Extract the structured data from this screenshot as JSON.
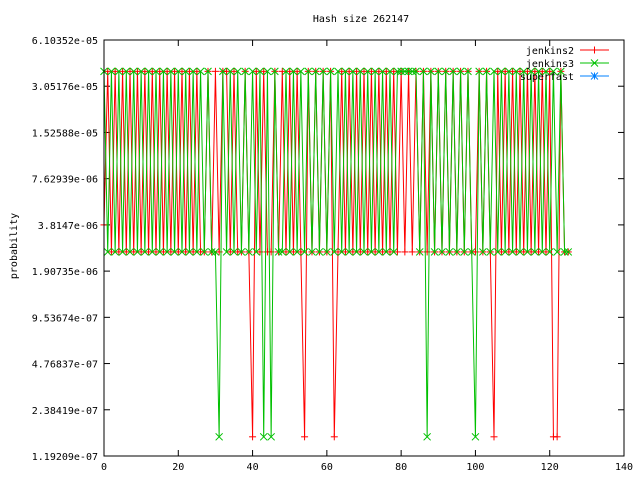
{
  "chart_data": {
    "type": "line",
    "title": "Hash size 262147",
    "xlabel": "",
    "ylabel": "probability",
    "xlim": [
      0,
      140
    ],
    "ylim": [
      1.19209e-07,
      6.10352e-05
    ],
    "yscale": "log2",
    "x_ticks": [
      "0",
      "20",
      "40",
      "60",
      "80",
      "100",
      "120",
      "140"
    ],
    "x_tick_values": [
      0,
      20,
      40,
      60,
      80,
      100,
      120,
      140
    ],
    "y_ticks": [
      "6.10352e-05",
      "3.05176e-05",
      "1.52588e-05",
      "7.62939e-06",
      "3.8147e-06",
      "1.90735e-06",
      "9.53674e-07",
      "4.76837e-07",
      "2.38419e-07",
      "1.19209e-07"
    ],
    "y_tick_values": [
      6.10352e-05,
      3.05176e-05,
      1.52588e-05,
      7.62939e-06,
      3.8147e-06,
      1.90735e-06,
      9.53674e-07,
      4.76837e-07,
      2.38419e-07,
      1.19209e-07
    ],
    "grid": false,
    "legend_position": "top-right",
    "levels": {
      "high": 3.8147e-05,
      "mid": 2.5431e-06,
      "low": 1.5895e-07
    },
    "series": [
      {
        "name": "jenkins2",
        "color": "#ff0000",
        "marker": "+",
        "x": [
          0,
          1,
          2,
          3,
          4,
          5,
          6,
          7,
          8,
          9,
          10,
          11,
          12,
          13,
          14,
          15,
          16,
          17,
          18,
          19,
          20,
          21,
          22,
          23,
          24,
          25,
          26,
          27,
          28,
          29,
          30,
          31,
          32,
          33,
          34,
          35,
          36,
          37,
          38,
          39,
          40,
          41,
          42,
          43,
          44,
          45,
          46,
          47,
          48,
          49,
          50,
          51,
          52,
          53,
          54,
          55,
          56,
          57,
          58,
          59,
          60,
          61,
          62,
          63,
          64,
          65,
          66,
          67,
          68,
          69,
          70,
          71,
          72,
          73,
          74,
          75,
          76,
          77,
          78,
          79,
          80,
          81,
          82,
          83,
          84,
          85,
          86,
          87,
          88,
          89,
          90,
          91,
          92,
          93,
          94,
          95,
          96,
          97,
          98,
          99,
          100,
          101,
          102,
          103,
          104,
          105,
          106,
          107,
          108,
          109,
          110,
          111,
          112,
          113,
          114,
          115,
          116,
          117,
          118,
          119,
          120,
          121,
          122,
          123,
          124,
          125
        ],
        "y": [
          3.8147e-06,
          3.8147e-05,
          2.5431e-06,
          3.8147e-05,
          2.5431e-06,
          3.8147e-05,
          2.5431e-06,
          3.8147e-05,
          2.5431e-06,
          3.8147e-05,
          2.5431e-06,
          3.8147e-05,
          2.5431e-06,
          3.8147e-05,
          2.5431e-06,
          3.8147e-05,
          2.5431e-06,
          3.8147e-05,
          2.5431e-06,
          3.8147e-05,
          2.5431e-06,
          3.8147e-05,
          2.5431e-06,
          3.8147e-05,
          2.5431e-06,
          3.8147e-05,
          2.5431e-06,
          2.5431e-06,
          3.8147e-05,
          2.5431e-06,
          3.8147e-05,
          2.5431e-06,
          3.8147e-05,
          3.8147e-05,
          2.5431e-06,
          3.8147e-05,
          2.5431e-06,
          2.5431e-06,
          3.8147e-05,
          2.5431e-06,
          1.5895e-07,
          3.8147e-05,
          2.5431e-06,
          3.8147e-05,
          2.5431e-06,
          2.5431e-06,
          3.8147e-05,
          2.5431e-06,
          3.8147e-05,
          2.5431e-06,
          3.8147e-05,
          2.5431e-06,
          3.8147e-05,
          2.5431e-06,
          1.5895e-07,
          3.8147e-05,
          2.5431e-06,
          3.8147e-05,
          2.5431e-06,
          3.8147e-05,
          2.5431e-06,
          3.8147e-05,
          1.5895e-07,
          2.5431e-06,
          3.8147e-05,
          2.5431e-06,
          3.8147e-05,
          2.5431e-06,
          3.8147e-05,
          2.5431e-06,
          3.8147e-05,
          2.5431e-06,
          3.8147e-05,
          2.5431e-06,
          3.8147e-05,
          2.5431e-06,
          3.8147e-05,
          2.5431e-06,
          3.8147e-05,
          2.5431e-06,
          3.8147e-05,
          2.5431e-06,
          3.8147e-05,
          2.5431e-06,
          3.8147e-05,
          2.5431e-06,
          3.8147e-05,
          2.5431e-06,
          3.8147e-05,
          2.5431e-06,
          3.8147e-05,
          2.5431e-06,
          3.8147e-05,
          2.5431e-06,
          3.8147e-05,
          2.5431e-06,
          3.8147e-05,
          2.5431e-06,
          3.8147e-05,
          2.5431e-06,
          2.5431e-06,
          3.8147e-05,
          2.5431e-06,
          3.8147e-05,
          2.5431e-06,
          1.5895e-07,
          3.8147e-05,
          2.5431e-06,
          3.8147e-05,
          2.5431e-06,
          3.8147e-05,
          2.5431e-06,
          3.8147e-05,
          2.5431e-06,
          3.8147e-05,
          2.5431e-06,
          3.8147e-05,
          2.5431e-06,
          3.8147e-05,
          2.5431e-06,
          3.8147e-05,
          1.5895e-07,
          1.5895e-07,
          3.8147e-05,
          2.5431e-06,
          2.5431e-06
        ]
      },
      {
        "name": "jenkins3",
        "color": "#00c000",
        "marker": "x",
        "x": [
          0,
          1,
          2,
          3,
          4,
          5,
          6,
          7,
          8,
          9,
          10,
          11,
          12,
          13,
          14,
          15,
          16,
          17,
          18,
          19,
          20,
          21,
          22,
          23,
          24,
          25,
          26,
          27,
          28,
          29,
          30,
          31,
          32,
          33,
          34,
          35,
          36,
          37,
          38,
          39,
          40,
          41,
          42,
          43,
          44,
          45,
          46,
          47,
          48,
          49,
          50,
          51,
          52,
          53,
          54,
          55,
          56,
          57,
          58,
          59,
          60,
          61,
          62,
          63,
          64,
          65,
          66,
          67,
          68,
          69,
          70,
          71,
          72,
          73,
          74,
          75,
          76,
          77,
          78,
          79,
          80,
          81,
          82,
          83,
          84,
          85,
          86,
          87,
          88,
          89,
          90,
          91,
          92,
          93,
          94,
          95,
          96,
          97,
          98,
          99,
          100,
          101,
          102,
          103,
          104,
          105,
          106,
          107,
          108,
          109,
          110,
          111,
          112,
          113,
          114,
          115,
          116,
          117,
          118,
          119,
          120,
          121,
          122,
          123,
          124,
          125
        ],
        "y": [
          3.8147e-05,
          2.5431e-06,
          3.8147e-05,
          2.5431e-06,
          3.8147e-05,
          2.5431e-06,
          3.8147e-05,
          2.5431e-06,
          3.8147e-05,
          2.5431e-06,
          3.8147e-05,
          2.5431e-06,
          3.8147e-05,
          2.5431e-06,
          3.8147e-05,
          2.5431e-06,
          3.8147e-05,
          2.5431e-06,
          3.8147e-05,
          2.5431e-06,
          3.8147e-05,
          2.5431e-06,
          3.8147e-05,
          2.5431e-06,
          3.8147e-05,
          2.5431e-06,
          3.8147e-05,
          2.5431e-06,
          3.8147e-05,
          2.5431e-06,
          2.5431e-06,
          1.5895e-07,
          3.8147e-05,
          2.5431e-06,
          3.8147e-05,
          2.5431e-06,
          3.8147e-05,
          2.5431e-06,
          3.8147e-05,
          2.5431e-06,
          3.8147e-05,
          2.5431e-06,
          3.8147e-05,
          1.5895e-07,
          3.8147e-05,
          1.5895e-07,
          3.8147e-05,
          2.5431e-06,
          2.5431e-06,
          3.8147e-05,
          2.5431e-06,
          3.8147e-05,
          2.5431e-06,
          3.8147e-05,
          2.5431e-06,
          3.8147e-05,
          2.5431e-06,
          3.8147e-05,
          2.5431e-06,
          3.8147e-05,
          2.5431e-06,
          3.8147e-05,
          2.5431e-06,
          3.8147e-05,
          2.5431e-06,
          3.8147e-05,
          2.5431e-06,
          3.8147e-05,
          2.5431e-06,
          3.8147e-05,
          2.5431e-06,
          3.8147e-05,
          2.5431e-06,
          3.8147e-05,
          2.5431e-06,
          3.8147e-05,
          2.5431e-06,
          3.8147e-05,
          2.5431e-06,
          3.8147e-05,
          3.8147e-05,
          3.8147e-05,
          3.8147e-05,
          3.8147e-05,
          3.8147e-05,
          2.5431e-06,
          3.8147e-05,
          1.5895e-07,
          3.8147e-05,
          2.5431e-06,
          3.8147e-05,
          2.5431e-06,
          3.8147e-05,
          2.5431e-06,
          3.8147e-05,
          2.5431e-06,
          3.8147e-05,
          2.5431e-06,
          3.8147e-05,
          2.5431e-06,
          1.5895e-07,
          3.8147e-05,
          2.5431e-06,
          3.8147e-05,
          2.5431e-06,
          3.8147e-05,
          2.5431e-06,
          3.8147e-05,
          2.5431e-06,
          3.8147e-05,
          2.5431e-06,
          3.8147e-05,
          2.5431e-06,
          3.8147e-05,
          2.5431e-06,
          3.8147e-05,
          2.5431e-06,
          3.8147e-05,
          2.5431e-06,
          3.8147e-05,
          2.5431e-06,
          3.8147e-05,
          2.5431e-06,
          3.8147e-05,
          2.5431e-06,
          2.5431e-06
        ]
      },
      {
        "name": "superfast",
        "color": "#0080ff",
        "marker": "*",
        "x": [],
        "y": []
      }
    ]
  }
}
